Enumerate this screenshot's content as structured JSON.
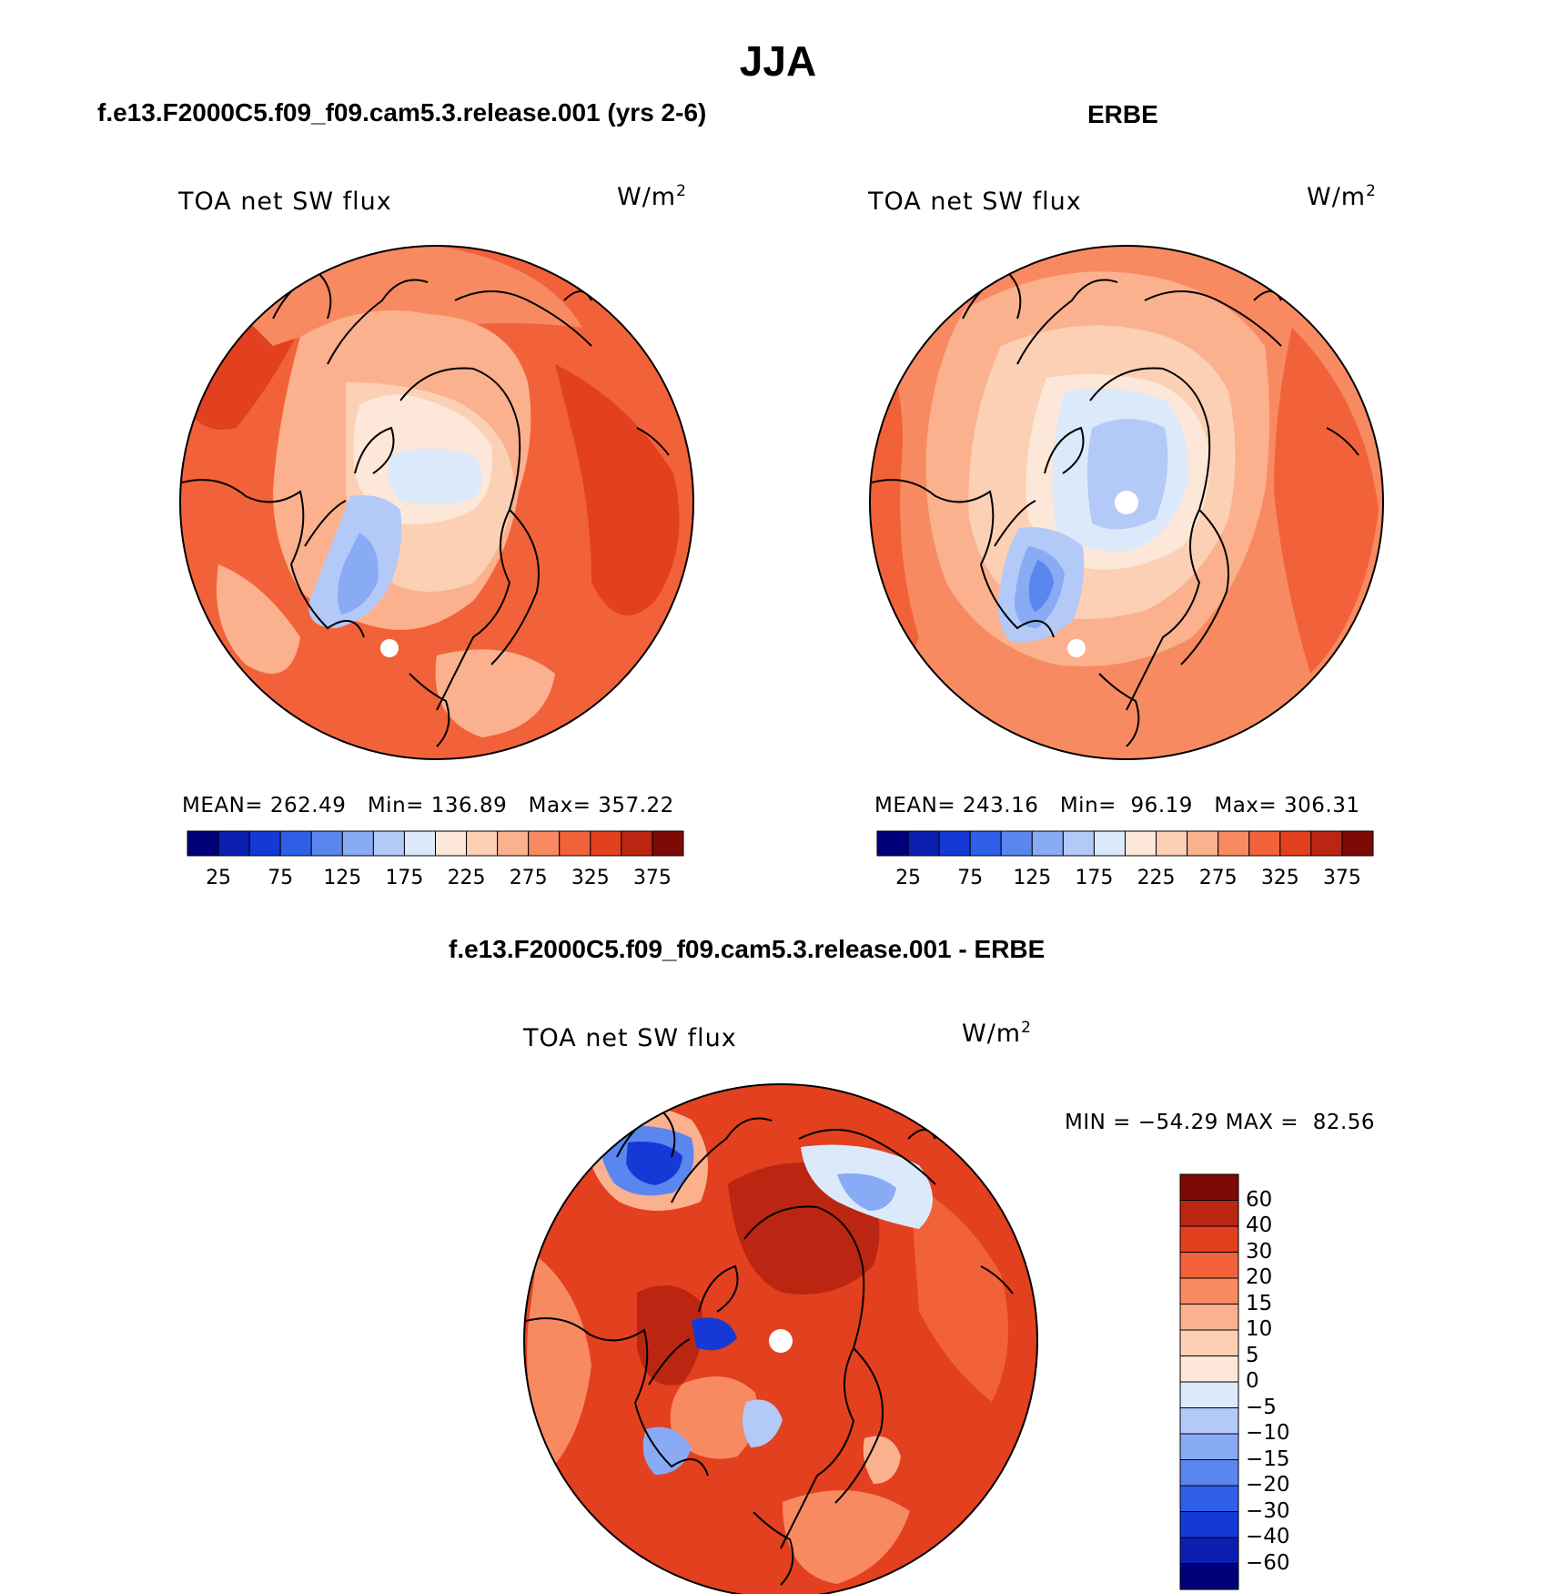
{
  "title": "JJA",
  "panels": [
    {
      "case_title": "f.e13.F2000C5.f09_f09.cam5.3.release.001 (yrs 2-6)",
      "var_label": "TOA net SW flux",
      "units_base": "W/m",
      "units_exp": "2",
      "stats": {
        "mean_label": "MEAN=",
        "mean": "262.49",
        "min_label": "Min=",
        "min": "136.89",
        "max_label": "Max=",
        "max": "357.22"
      }
    },
    {
      "case_title": "ERBE",
      "var_label": "TOA net SW flux",
      "units_base": "W/m",
      "units_exp": "2",
      "stats": {
        "mean_label": "MEAN=",
        "mean": "243.16",
        "min_label": "Min=",
        "min": "96.19",
        "max_label": "Max=",
        "max": "306.31"
      }
    },
    {
      "case_title": "f.e13.F2000C5.f09_f09.cam5.3.release.001 - ERBE",
      "var_label": "TOA net SW flux",
      "units_base": "W/m",
      "units_exp": "2",
      "minmax_text": "MIN = −54.29 MAX =  82.56"
    }
  ],
  "horizontal_colorbar": {
    "colors": [
      "#00007a",
      "#0a1fb0",
      "#1439d6",
      "#2f5fe8",
      "#5a86f0",
      "#89aaf5",
      "#b3c9f8",
      "#dbe9fb",
      "#fde7d8",
      "#fcd0b4",
      "#fbb18e",
      "#f88a62",
      "#f2623a",
      "#e2401f",
      "#bb2612",
      "#7c0b05"
    ],
    "tick_labels": [
      "25",
      "75",
      "125",
      "175",
      "225",
      "275",
      "325",
      "375"
    ]
  },
  "vertical_colorbar": {
    "colors_top_to_bottom": [
      "#7c0b05",
      "#bb2612",
      "#e2401f",
      "#f2623a",
      "#f88a62",
      "#fbb18e",
      "#fcd0b4",
      "#fde7d8",
      "#dbe9fb",
      "#b3c9f8",
      "#89aaf5",
      "#5a86f0",
      "#2f5fe8",
      "#1439d6",
      "#0a1fb0",
      "#00007a"
    ],
    "tick_labels": [
      "60",
      "40",
      "30",
      "20",
      "15",
      "10",
      "5",
      "0",
      "−5",
      "−10",
      "−15",
      "−20",
      "−30",
      "−40",
      "−60"
    ]
  },
  "map_colors": {
    "deep_red": "#bb2612",
    "red": "#e2401f",
    "orange_red": "#f2623a",
    "orange": "#f88a62",
    "salmon": "#fbb18e",
    "peach": "#fcd0b4",
    "cream": "#fde7d8",
    "pale_blue": "#dbe9fb",
    "light_blue": "#b3c9f8",
    "mid_blue": "#89aaf5",
    "blue": "#5a86f0",
    "strong_blue": "#2f5fe8",
    "deep_blue": "#1439d6"
  }
}
